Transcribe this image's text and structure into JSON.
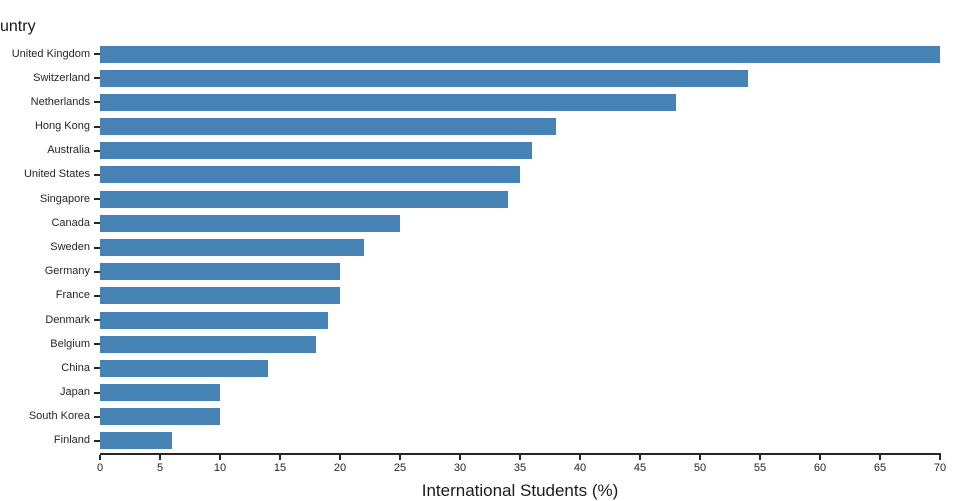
{
  "chart": {
    "axis_title_fragment": "untry",
    "xlabel": "International Students (%)"
  },
  "chart_data": {
    "type": "bar",
    "orientation": "horizontal",
    "title": "untry",
    "xlabel": "International Students (%)",
    "categories": [
      "United Kingdom",
      "Switzerland",
      "Netherlands",
      "Hong Kong",
      "Australia",
      "United States",
      "Singapore",
      "Canada",
      "Sweden",
      "Germany",
      "France",
      "Denmark",
      "Belgium",
      "China",
      "Japan",
      "South Korea",
      "Finland"
    ],
    "values": [
      70,
      54,
      48,
      38,
      36,
      35,
      34,
      25,
      22,
      20,
      20,
      19,
      18,
      14,
      10,
      10,
      6
    ],
    "xlim": [
      0,
      70
    ],
    "xticks": [
      0,
      5,
      10,
      15,
      20,
      25,
      30,
      35,
      40,
      45,
      50,
      55,
      60,
      65,
      70
    ],
    "bar_color": "#4682b4",
    "grid": false,
    "legend_position": "none"
  }
}
